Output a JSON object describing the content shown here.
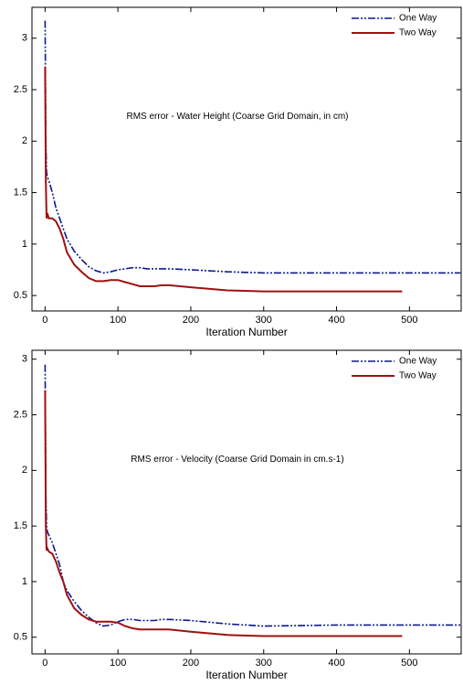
{
  "chart_data": [
    {
      "type": "line",
      "annotation": "RMS error - Water Height (Coarse Grid Domain, in cm)",
      "x_label": "Iteration Number",
      "x": [
        0,
        1,
        2,
        3,
        5,
        10,
        15,
        20,
        25,
        30,
        40,
        50,
        60,
        70,
        80,
        90,
        100,
        110,
        120,
        130,
        140,
        150,
        160,
        170,
        200,
        250,
        300,
        400,
        490,
        500,
        570
      ],
      "series": [
        {
          "name": "One Way",
          "color": "#0a1a8c",
          "values": [
            3.17,
            2.0,
            1.7,
            1.65,
            1.62,
            1.5,
            1.35,
            1.25,
            1.15,
            1.05,
            0.93,
            0.85,
            0.78,
            0.74,
            0.72,
            0.73,
            0.75,
            0.76,
            0.77,
            0.77,
            0.76,
            0.76,
            0.76,
            0.76,
            0.75,
            0.73,
            0.72,
            0.72,
            0.72,
            0.72,
            0.72
          ]
        },
        {
          "name": "Two Way",
          "color": "#a01010",
          "values": [
            2.72,
            1.6,
            1.25,
            1.3,
            1.25,
            1.25,
            1.22,
            1.15,
            1.05,
            0.92,
            0.8,
            0.73,
            0.67,
            0.64,
            0.64,
            0.65,
            0.65,
            0.63,
            0.61,
            0.59,
            0.59,
            0.59,
            0.6,
            0.6,
            0.58,
            0.55,
            0.54,
            0.54,
            0.54,
            null,
            null
          ]
        }
      ],
      "xlim": [
        -18,
        571
      ],
      "ylim": [
        0.35,
        3.3
      ],
      "xticks": [
        0,
        100,
        200,
        300,
        400,
        500
      ],
      "yticks": [
        0.5,
        1,
        1.5,
        2,
        2.5,
        3
      ],
      "legend": "top-right"
    },
    {
      "type": "line",
      "annotation": "RMS error - Velocity (Coarse Grid Domain in cm.s-1)",
      "x_label": "Iteration Number",
      "x": [
        0,
        1,
        2,
        3,
        5,
        10,
        15,
        20,
        25,
        30,
        40,
        50,
        60,
        70,
        80,
        90,
        100,
        110,
        120,
        130,
        140,
        150,
        160,
        170,
        200,
        250,
        300,
        400,
        490,
        500,
        570
      ],
      "series": [
        {
          "name": "One Way",
          "color": "#0a1a8c",
          "values": [
            2.95,
            1.8,
            1.5,
            1.45,
            1.42,
            1.35,
            1.25,
            1.15,
            1.0,
            0.92,
            0.82,
            0.74,
            0.68,
            0.63,
            0.6,
            0.61,
            0.64,
            0.66,
            0.66,
            0.65,
            0.65,
            0.65,
            0.66,
            0.66,
            0.65,
            0.62,
            0.6,
            0.61,
            0.61,
            0.61,
            0.61
          ]
        },
        {
          "name": "Two Way",
          "color": "#a01010",
          "values": [
            2.72,
            1.5,
            1.28,
            1.3,
            1.27,
            1.25,
            1.18,
            1.08,
            1.0,
            0.88,
            0.76,
            0.7,
            0.66,
            0.64,
            0.64,
            0.64,
            0.63,
            0.6,
            0.58,
            0.57,
            0.57,
            0.57,
            0.57,
            0.57,
            0.55,
            0.52,
            0.51,
            0.51,
            0.51,
            null,
            null
          ]
        }
      ],
      "xlim": [
        -18,
        571
      ],
      "ylim": [
        0.35,
        3.08
      ],
      "xticks": [
        0,
        100,
        200,
        300,
        400,
        500
      ],
      "yticks": [
        0.5,
        1,
        1.5,
        2,
        2.5,
        3
      ],
      "legend": "top-right"
    }
  ]
}
